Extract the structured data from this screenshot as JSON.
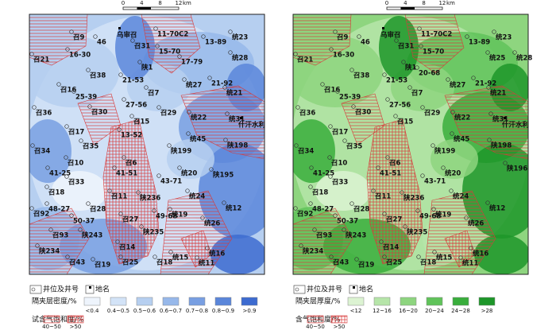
{
  "panels": [
    {
      "scale_bar": {
        "ticks": [
          "0",
          "4",
          "8",
          "12"
        ],
        "unit": "km"
      },
      "wells": [
        "召9",
        "46",
        "召31",
        "11-70C2",
        "统23",
        "13-89",
        "16-30",
        "召21",
        "15-70",
        "统28",
        "17-79",
        "陕1",
        "召38",
        "21-53",
        "21-92",
        "统27",
        "召16",
        "召7",
        "统21",
        "25-39",
        "27-56",
        "召36",
        "召30",
        "召29",
        "统22",
        "统31",
        "召15",
        "召17",
        "13-52",
        "统45",
        "陕198",
        "召35",
        "召34",
        "陕199",
        "召10",
        "召6",
        "41-25",
        "41-51",
        "统20",
        "陕195",
        "召33",
        "43-71",
        "召18",
        "召11",
        "陕236",
        "统24",
        "48-27",
        "召28",
        "统12",
        "召92",
        "召27",
        "统19",
        "50-37",
        "49-68",
        "统26",
        "陕243",
        "陕235",
        "召93",
        "召14",
        "陕234",
        "统16",
        "统15",
        "召43",
        "召19",
        "召25",
        "召18",
        "统11"
      ],
      "places": [
        "乌审召",
        "什汗水利"
      ],
      "legend": {
        "well_label": "井位及井号",
        "place_label": "地名",
        "fill_title": "隔夹层密度/%",
        "fill_classes": [
          {
            "label": "<0.4",
            "color": "#eef4fc"
          },
          {
            "label": "0.4~0.5",
            "color": "#d3e3f7"
          },
          {
            "label": "0.5~0.6",
            "color": "#b6cff0"
          },
          {
            "label": "0.6~0.7",
            "color": "#97b8ea"
          },
          {
            "label": "0.7~0.8",
            "color": "#789fe2"
          },
          {
            "label": "0.8~0.9",
            "color": "#5a86da"
          },
          {
            "label": ">0.9",
            "color": "#3d6bd0"
          }
        ],
        "hatch_title": "试含气饱和度/%",
        "hatch_classes": [
          {
            "label": "40~50",
            "color": "#d83a3a"
          },
          {
            "label": ">50",
            "color": "#d83a3a"
          }
        ]
      }
    },
    {
      "scale_bar": {
        "ticks": [
          "0",
          "4",
          "8",
          "12"
        ],
        "unit": "km"
      },
      "wells": [
        "召9",
        "46",
        "召31",
        "11-70C2",
        "统23",
        "13-89",
        "16-30",
        "召21",
        "15-70",
        "统25",
        "统28",
        "20-68",
        "陕1",
        "召38",
        "21-53",
        "21-92",
        "统27",
        "召16",
        "召7",
        "统21",
        "25-39",
        "27-56",
        "召36",
        "召30",
        "召29",
        "统22",
        "统31",
        "召15",
        "召17",
        "统45",
        "陕198",
        "召35",
        "召34",
        "陕199",
        "召10",
        "召6",
        "41-25",
        "41-51",
        "统20",
        "陕196",
        "召33",
        "43-71",
        "召18",
        "召11",
        "陕236",
        "统24",
        "48-27",
        "召28",
        "统12",
        "召92",
        "召27",
        "统19",
        "50-37",
        "49-68",
        "统26",
        "陕243",
        "陕235",
        "召93",
        "召14",
        "陕234",
        "统16",
        "统15",
        "召43",
        "召19",
        "召25",
        "召18",
        "统11"
      ],
      "places": [
        "乌审召",
        "什汗水利"
      ],
      "legend": {
        "well_label": "井位及井号",
        "place_label": "地名",
        "fill_title": "隔夹层厚度/%",
        "fill_classes": [
          {
            "label": "<12",
            "color": "#dcf3d2"
          },
          {
            "label": "12~16",
            "color": "#b6e5a9"
          },
          {
            "label": "16~20",
            "color": "#8ed57f"
          },
          {
            "label": "20~24",
            "color": "#60c35a"
          },
          {
            "label": "24~28",
            "color": "#39ae3c"
          },
          {
            "label": ">28",
            "color": "#1d9629"
          }
        ],
        "hatch_title": "含气饱和度/%",
        "hatch_classes": [
          {
            "label": "40~50",
            "color": "#d83a3a"
          },
          {
            "label": ">50",
            "color": "#d83a3a"
          }
        ]
      }
    }
  ]
}
